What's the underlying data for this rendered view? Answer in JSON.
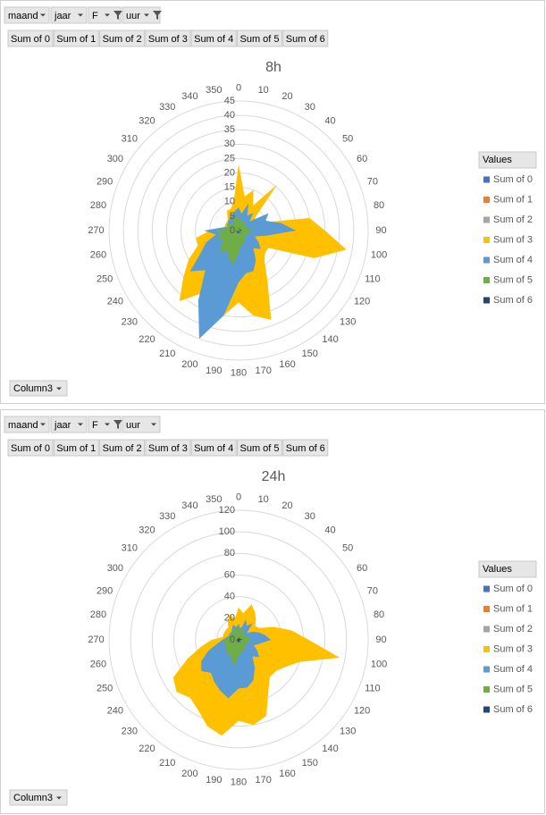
{
  "chart_data": [
    {
      "type": "radar",
      "title": "8h",
      "filters": [
        "maand",
        "jaar",
        "F",
        "uur"
      ],
      "filter_active": [
        false,
        false,
        true,
        true
      ],
      "value_fields": [
        "Sum of 0",
        "Sum of 1",
        "Sum of 2",
        "Sum of 3",
        "Sum of 4",
        "Sum of 5",
        "Sum of 6"
      ],
      "legend_title": "Values",
      "axis_field": "Column3",
      "categories": [
        "0",
        "10",
        "20",
        "30",
        "40",
        "50",
        "60",
        "70",
        "80",
        "90",
        "100",
        "110",
        "120",
        "130",
        "140",
        "150",
        "160",
        "170",
        "180",
        "190",
        "200",
        "210",
        "220",
        "230",
        "240",
        "250",
        "260",
        "270",
        "280",
        "290",
        "300",
        "310",
        "320",
        "330",
        "340",
        "350"
      ],
      "ylim": [
        0,
        45
      ],
      "yticks": [
        0,
        5,
        10,
        15,
        20,
        25,
        30,
        35,
        40,
        45
      ],
      "grid": true,
      "series": [
        {
          "name": "Sum of 0",
          "color": "#4472c4",
          "values": [
            2,
            1,
            2,
            1,
            2,
            1,
            2,
            3,
            5,
            6,
            3,
            2,
            2,
            2,
            2,
            3,
            3,
            3,
            4,
            5,
            6,
            4,
            3,
            3,
            2,
            2,
            2,
            2,
            1,
            1,
            1,
            1,
            1,
            1,
            1,
            2
          ]
        },
        {
          "name": "Sum of 1",
          "color": "#ed7d31",
          "values": [
            1,
            0,
            1,
            0,
            1,
            0,
            1,
            1,
            1,
            1,
            1,
            0,
            1,
            1,
            0,
            1,
            1,
            1,
            1,
            1,
            1,
            1,
            1,
            1,
            0,
            1,
            0,
            1,
            0,
            0,
            0,
            0,
            0,
            1,
            0,
            1
          ]
        },
        {
          "name": "Sum of 2",
          "color": "#a5a5a5",
          "values": [
            1,
            1,
            1,
            1,
            1,
            1,
            1,
            1,
            2,
            2,
            1,
            1,
            1,
            1,
            1,
            1,
            1,
            1,
            2,
            2,
            2,
            2,
            1,
            1,
            1,
            1,
            1,
            1,
            1,
            1,
            1,
            1,
            1,
            1,
            1,
            1
          ]
        },
        {
          "name": "Sum of 3",
          "color": "#ffc000",
          "values": [
            23,
            12,
            15,
            10,
            21,
            8,
            6,
            8,
            25,
            30,
            38,
            28,
            12,
            12,
            14,
            20,
            33,
            30,
            25,
            30,
            30,
            25,
            32,
            25,
            20,
            15,
            15,
            10,
            5,
            5,
            5,
            5,
            6,
            8,
            8,
            10
          ]
        },
        {
          "name": "Sum of 4",
          "color": "#5b9bd5",
          "values": [
            8,
            6,
            10,
            6,
            8,
            5,
            12,
            10,
            15,
            20,
            10,
            6,
            8,
            10,
            8,
            12,
            15,
            15,
            18,
            30,
            40,
            28,
            18,
            22,
            15,
            12,
            8,
            12,
            6,
            4,
            4,
            5,
            5,
            6,
            6,
            7
          ]
        },
        {
          "name": "Sum of 5",
          "color": "#70ad47",
          "values": [
            4,
            5,
            3,
            4,
            3,
            3,
            3,
            3,
            4,
            5,
            4,
            3,
            3,
            4,
            3,
            4,
            5,
            5,
            8,
            12,
            10,
            8,
            10,
            8,
            6,
            8,
            6,
            8,
            4,
            4,
            5,
            3,
            3,
            4,
            5,
            5
          ]
        },
        {
          "name": "Sum of 6",
          "color": "#264478",
          "values": [
            1,
            0,
            1,
            1,
            0,
            1,
            0,
            1,
            1,
            1,
            1,
            0,
            1,
            0,
            1,
            1,
            1,
            0,
            1,
            1,
            1,
            1,
            0,
            1,
            1,
            0,
            1,
            1,
            0,
            1,
            0,
            0,
            1,
            0,
            1,
            0
          ]
        }
      ]
    },
    {
      "type": "radar",
      "title": "24h",
      "filters": [
        "maand",
        "jaar",
        "F",
        "uur"
      ],
      "filter_active": [
        false,
        false,
        true,
        false
      ],
      "value_fields": [
        "Sum of 0",
        "Sum of 1",
        "Sum of 2",
        "Sum of 3",
        "Sum of 4",
        "Sum of 5",
        "Sum of 6"
      ],
      "legend_title": "Values",
      "axis_field": "Column3",
      "categories": [
        "0",
        "10",
        "20",
        "30",
        "40",
        "50",
        "60",
        "70",
        "80",
        "90",
        "100",
        "110",
        "120",
        "130",
        "140",
        "150",
        "160",
        "170",
        "180",
        "190",
        "200",
        "210",
        "220",
        "230",
        "240",
        "250",
        "260",
        "270",
        "280",
        "290",
        "300",
        "310",
        "320",
        "330",
        "340",
        "350"
      ],
      "ylim": [
        0,
        120
      ],
      "yticks": [
        0,
        20,
        40,
        60,
        80,
        100,
        120
      ],
      "grid": true,
      "series": [
        {
          "name": "Sum of 0",
          "color": "#4472c4",
          "values": [
            4,
            3,
            5,
            4,
            5,
            3,
            4,
            5,
            8,
            10,
            6,
            4,
            5,
            6,
            5,
            6,
            8,
            8,
            10,
            12,
            10,
            8,
            8,
            8,
            6,
            5,
            4,
            4,
            3,
            3,
            3,
            3,
            3,
            3,
            3,
            4
          ]
        },
        {
          "name": "Sum of 1",
          "color": "#ed7d31",
          "values": [
            2,
            1,
            2,
            1,
            2,
            1,
            2,
            2,
            3,
            3,
            2,
            1,
            2,
            2,
            1,
            2,
            2,
            2,
            3,
            3,
            3,
            2,
            2,
            2,
            1,
            2,
            1,
            2,
            1,
            1,
            1,
            1,
            1,
            2,
            1,
            2
          ]
        },
        {
          "name": "Sum of 2",
          "color": "#a5a5a5",
          "values": [
            3,
            2,
            3,
            2,
            3,
            2,
            3,
            3,
            4,
            4,
            3,
            2,
            3,
            3,
            2,
            3,
            3,
            3,
            4,
            4,
            4,
            3,
            3,
            3,
            2,
            3,
            2,
            3,
            2,
            2,
            2,
            2,
            2,
            3,
            2,
            3
          ]
        },
        {
          "name": "Sum of 3",
          "color": "#ffc000",
          "values": [
            30,
            25,
            35,
            30,
            25,
            20,
            22,
            35,
            50,
            65,
            95,
            60,
            50,
            45,
            45,
            55,
            75,
            80,
            75,
            90,
            85,
            75,
            70,
            75,
            70,
            50,
            35,
            25,
            15,
            15,
            15,
            15,
            15,
            20,
            25,
            20
          ]
        },
        {
          "name": "Sum of 4",
          "color": "#5b9bd5",
          "values": [
            15,
            10,
            20,
            15,
            20,
            10,
            15,
            20,
            25,
            30,
            20,
            15,
            20,
            25,
            20,
            30,
            40,
            45,
            45,
            55,
            50,
            45,
            40,
            45,
            40,
            30,
            20,
            15,
            12,
            10,
            10,
            10,
            10,
            12,
            15,
            12
          ]
        },
        {
          "name": "Sum of 5",
          "color": "#70ad47",
          "values": [
            10,
            12,
            8,
            10,
            8,
            6,
            8,
            8,
            10,
            12,
            10,
            8,
            8,
            10,
            8,
            10,
            12,
            12,
            15,
            25,
            20,
            15,
            18,
            15,
            12,
            15,
            12,
            15,
            10,
            8,
            10,
            8,
            8,
            10,
            12,
            10
          ]
        },
        {
          "name": "Sum of 6",
          "color": "#264478",
          "values": [
            2,
            1,
            3,
            2,
            1,
            2,
            1,
            2,
            3,
            3,
            2,
            1,
            2,
            1,
            2,
            2,
            3,
            1,
            2,
            3,
            2,
            2,
            1,
            2,
            2,
            1,
            2,
            2,
            1,
            2,
            1,
            1,
            2,
            1,
            2,
            1
          ]
        }
      ]
    }
  ]
}
